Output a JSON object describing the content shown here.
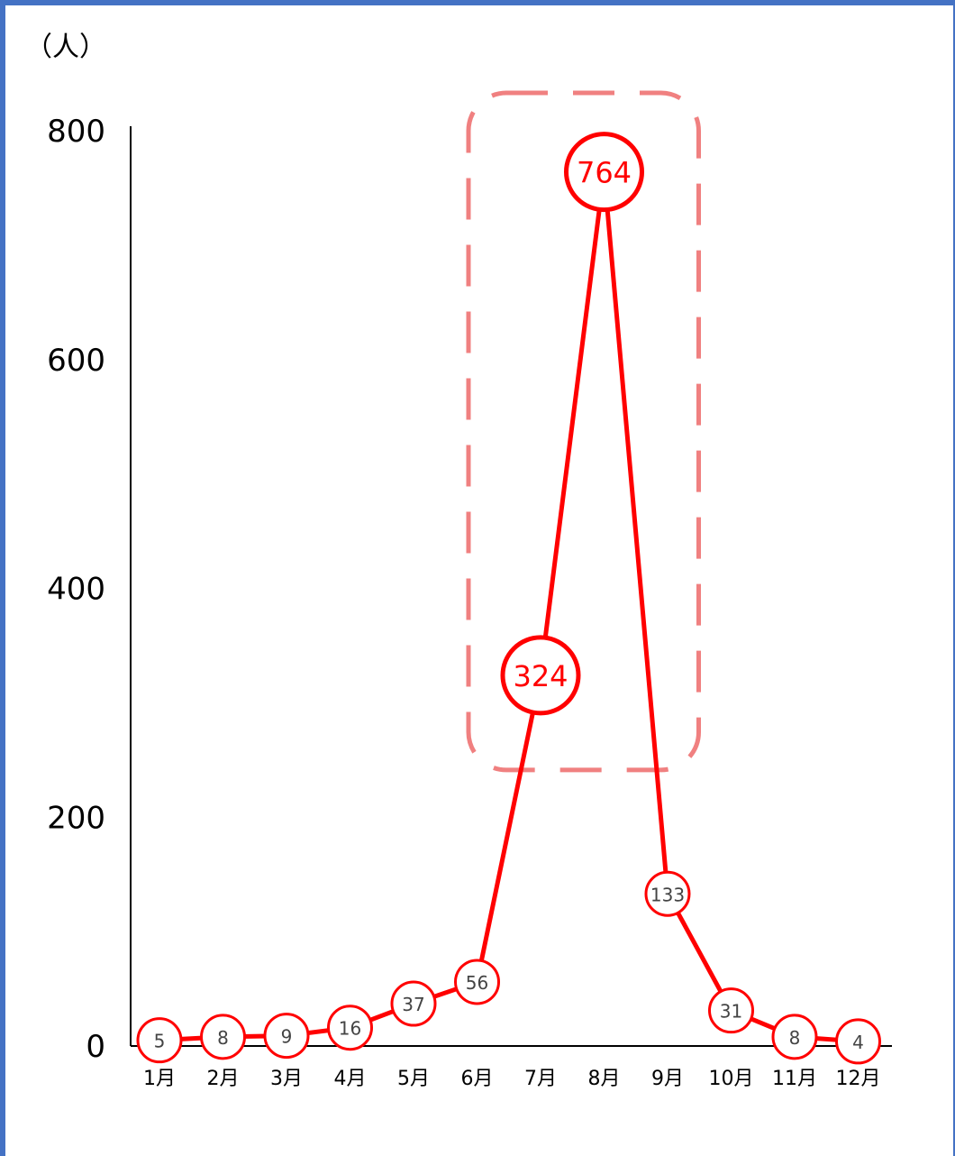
{
  "chart_data": {
    "type": "line",
    "unit_label": "（人）",
    "categories": [
      "1月",
      "2月",
      "3月",
      "4月",
      "5月",
      "6月",
      "7月",
      "8月",
      "9月",
      "10月",
      "11月",
      "12月"
    ],
    "series": [
      {
        "values": [
          5,
          8,
          9,
          16,
          37,
          56,
          324,
          764,
          133,
          31,
          8,
          4
        ],
        "labels": [
          "5",
          "8",
          "9",
          "16",
          "37",
          "56",
          "324",
          "764",
          "133",
          "31",
          "8",
          "4"
        ],
        "color": "#ff0000"
      }
    ],
    "ylim": [
      0,
      800
    ],
    "yticks": [
      "0",
      "200",
      "400",
      "600",
      "800"
    ],
    "highlight": {
      "categories": [
        "7月",
        "8月"
      ],
      "style": "dashed-rounded-box",
      "color": "#f08080"
    },
    "emphasized_points": [
      "7月",
      "8月"
    ],
    "grid": false,
    "legend": "none"
  }
}
